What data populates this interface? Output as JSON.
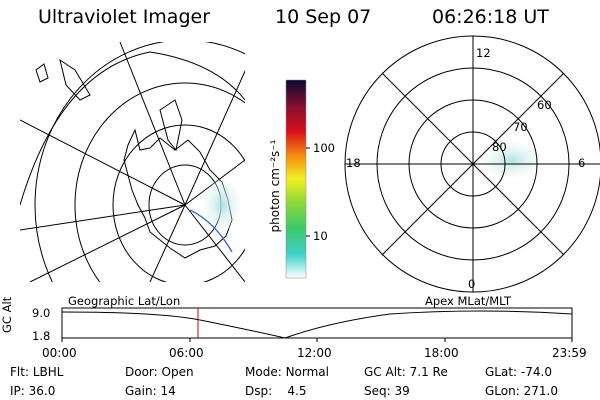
{
  "header": {
    "title": "Ultraviolet Imager",
    "date": "10 Sep 07",
    "time": "06:26:18 UT"
  },
  "colorbar": {
    "label": "photon cm⁻²s⁻¹",
    "ticks": [
      "100",
      "10"
    ]
  },
  "polar": {
    "lat_labels": [
      "80",
      "70",
      "60"
    ],
    "mlt_labels": [
      "12",
      "18",
      "6",
      "0"
    ]
  },
  "timeline": {
    "y_label": "GC Alt",
    "y_ticks": [
      "9.0",
      "1.8"
    ],
    "left_label": "Geographic Lat/Lon",
    "right_label": "Apex MLat/MLT",
    "x_ticks": [
      "00:00",
      "06:00",
      "12:00",
      "18:00",
      "23:59"
    ],
    "marker_color": "#cc0000"
  },
  "footer": {
    "row1": [
      {
        "k": "Flt:",
        "v": "LBHL"
      },
      {
        "k": "Door:",
        "v": "Open"
      },
      {
        "k": "Mode:",
        "v": "Normal"
      },
      {
        "k": "GC Alt:",
        "v": "7.1 Re"
      },
      {
        "k": "GLat:",
        "v": "-74.0"
      }
    ],
    "row2": [
      {
        "k": "IP:",
        "v": "36.0"
      },
      {
        "k": "Gain:",
        "v": "14"
      },
      {
        "k": "Dsp:",
        "v": "4.5"
      },
      {
        "k": "Seq:",
        "v": "39"
      },
      {
        "k": "GLon:",
        "v": "271.0"
      }
    ]
  },
  "colors": {
    "line": "#000000",
    "aurora": "#b8e6e4",
    "track": "#3b6fd6"
  }
}
